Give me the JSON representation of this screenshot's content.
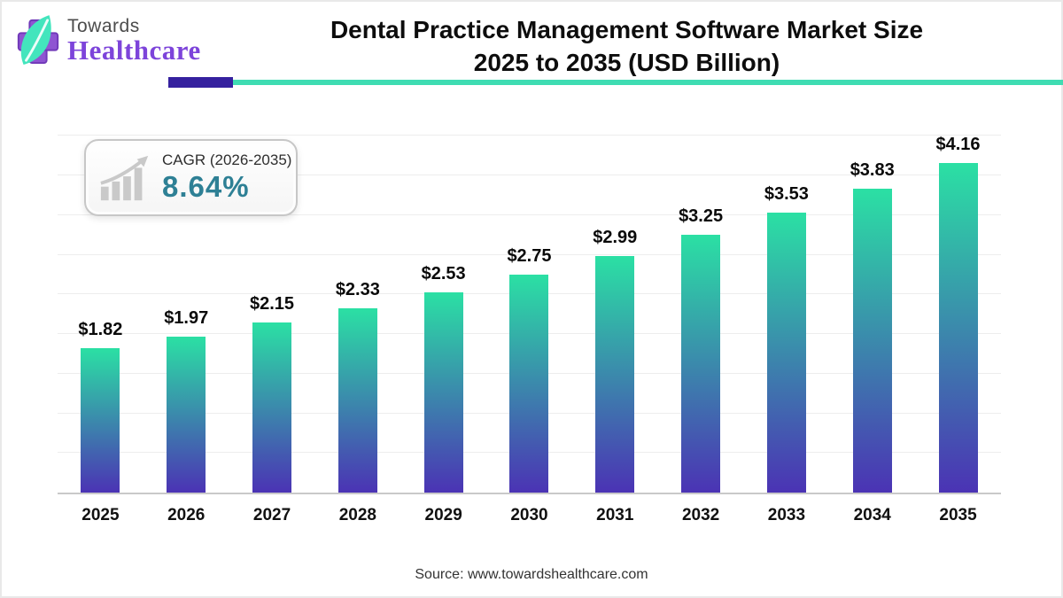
{
  "header": {
    "logo": {
      "line1": "Towards",
      "line2": "Healthcare"
    },
    "title_line1": "Dental Practice Management Software Market Size",
    "title_line2": "2025 to 2035 (USD Billion)"
  },
  "cagr": {
    "label": "CAGR (2026-2035)",
    "value": "8.64%"
  },
  "footer": {
    "source": "Source: www.towardshealthcare.com"
  },
  "icons": {
    "logo": "healthcare-cross-leaf-icon",
    "badge": "growth-bar-chart-arrow-icon"
  },
  "colors": {
    "bar_gradient_top": "#2be0a4",
    "bar_gradient_bottom": "#4b33b4",
    "underline_purple": "#35219f",
    "underline_teal": "#3fdcb2",
    "cagr_teal": "#2e8095",
    "logo_purple": "#8f54d2",
    "leaf_mint": "#43e5bd",
    "title_black": "#0d0d0d",
    "gridline": "#ededed",
    "axis_gray": "#c9c9c9"
  },
  "chart_data": {
    "type": "bar",
    "title": "Dental Practice Management Software Market Size 2025 to 2035 (USD Billion)",
    "categories": [
      "2025",
      "2026",
      "2027",
      "2028",
      "2029",
      "2030",
      "2031",
      "2032",
      "2033",
      "2034",
      "2035"
    ],
    "values": [
      1.82,
      1.97,
      2.15,
      2.33,
      2.53,
      2.75,
      2.99,
      3.25,
      3.53,
      3.83,
      4.16
    ],
    "labels": [
      "$1.82",
      "$1.97",
      "$2.15",
      "$2.33",
      "$2.53",
      "$2.75",
      "$2.99",
      "$3.25",
      "$3.53",
      "$3.83",
      "$4.16"
    ],
    "xlabel": "",
    "ylabel": "",
    "ylim": [
      0,
      4.65
    ],
    "ygrid_step": 0.5,
    "grid": true,
    "legend": false,
    "bar_gradient_top": "#2be0a4",
    "bar_gradient_bottom": "#4b33b4"
  }
}
